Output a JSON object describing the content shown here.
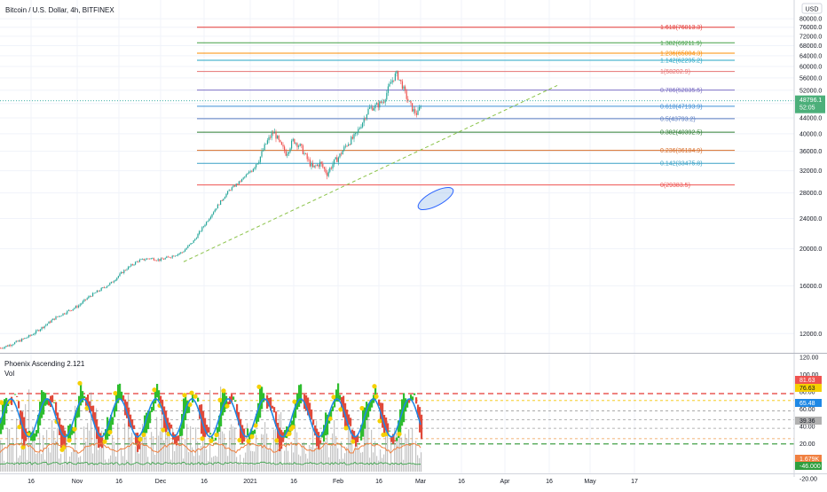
{
  "header": {
    "title": "Bitcoin / U.S. Dollar, 4h, BITFINEX",
    "currency_button": "USD",
    "colors": {
      "up": "#26a69a",
      "down": "#ef5350"
    }
  },
  "indicator": {
    "title": "Phoenix Ascending 2.121",
    "sub_title": "Vol"
  },
  "chart_data": [
    {
      "type": "candlestick",
      "y_scale": "log",
      "ylim": [
        10800,
        84000
      ],
      "y_ticks": [
        "80000.0",
        "76000.0",
        "72000.0",
        "68000.0",
        "64000.0",
        "60000.0",
        "56000.0",
        "52000.0",
        "48000.0",
        "44000.0",
        "40000.0",
        "36000.0",
        "32000.0",
        "28000.0",
        "24000.0",
        "20000.0",
        "16000.0",
        "12000.0"
      ],
      "x_ticks": [
        "16",
        "Nov",
        "16",
        "Dec",
        "16",
        "2021",
        "16",
        "Feb",
        "16",
        "Mar",
        "16",
        "Apr",
        "16",
        "May",
        "17"
      ],
      "series": [
        {
          "values": [
            [
              0,
              11000
            ],
            [
              10,
              11200
            ],
            [
              22,
              11500
            ],
            [
              35,
              11900
            ],
            [
              50,
              12600
            ],
            [
              62,
              13200
            ],
            [
              75,
              13700
            ],
            [
              88,
              14200
            ],
            [
              100,
              15000
            ],
            [
              112,
              15600
            ],
            [
              125,
              16300
            ],
            [
              140,
              17600
            ],
            [
              155,
              18600
            ],
            [
              168,
              18900
            ],
            [
              180,
              18700
            ],
            [
              192,
              19100
            ],
            [
              205,
              19600
            ],
            [
              218,
              21000
            ],
            [
              232,
              23500
            ],
            [
              245,
              26000
            ],
            [
              258,
              28500
            ],
            [
              270,
              30000
            ],
            [
              282,
              32000
            ],
            [
              292,
              34500
            ],
            [
              300,
              38000
            ],
            [
              308,
              40500
            ],
            [
              315,
              37500
            ],
            [
              322,
              35500
            ],
            [
              330,
              38500
            ],
            [
              338,
              37000
            ],
            [
              345,
              34500
            ],
            [
              352,
              32500
            ],
            [
              360,
              33500
            ],
            [
              368,
              31500
            ],
            [
              375,
              33500
            ],
            [
              382,
              35000
            ],
            [
              390,
              37500
            ],
            [
              400,
              39500
            ],
            [
              408,
              43000
            ],
            [
              415,
              46500
            ],
            [
              425,
              47500
            ],
            [
              432,
              49000
            ],
            [
              440,
              54500
            ],
            [
              446,
              57500
            ],
            [
              452,
              54000
            ],
            [
              458,
              49500
            ],
            [
              465,
              46000
            ],
            [
              470,
              45000
            ],
            [
              475,
              48796
            ]
          ]
        }
      ],
      "price_label": {
        "value": "48796.1",
        "countdown": "52:05"
      },
      "fib_levels": [
        {
          "ratio": "1.618",
          "value": "76013.3",
          "color": "#e53935"
        },
        {
          "ratio": "1.382",
          "value": "69211.9",
          "color": "#43a047"
        },
        {
          "ratio": "1.236",
          "value": "65004.3",
          "color": "#fb8c00"
        },
        {
          "ratio": "1.142",
          "value": "62295.2",
          "color": "#26a6c6"
        },
        {
          "ratio": "1",
          "value": "58202.9",
          "color": "#e57373"
        },
        {
          "ratio": "0.786",
          "value": "52035.5",
          "color": "#7e72c5"
        },
        {
          "ratio": "0.618",
          "value": "47193.9",
          "color": "#3f8fd6"
        },
        {
          "ratio": "0.5",
          "value": "43793.2",
          "color": "#5b7ec2"
        },
        {
          "ratio": "0.382",
          "value": "40392.5",
          "color": "#2e7d32"
        },
        {
          "ratio": "0.236",
          "value": "36184.9",
          "color": "#d86e2a"
        },
        {
          "ratio": "0.142",
          "value": "33475.8",
          "color": "#3aa1c6"
        },
        {
          "ratio": "0",
          "value": "29383.5",
          "color": "#ef5350"
        }
      ]
    },
    {
      "type": "line",
      "ylim": [
        -12,
        122
      ],
      "y_ticks": [
        "120.00",
        "100.00",
        "80.00",
        "60.00",
        "40.00",
        "20.00",
        "0.00",
        "-20.00"
      ],
      "level_labels": [
        {
          "value": "81.63",
          "color": "#ef5350"
        },
        {
          "value": "76.63",
          "color": "#f5d000"
        },
        {
          "value": "65.48",
          "color": "#1e88e5"
        },
        {
          "value": "39.36",
          "color": "#b0b0b0"
        },
        {
          "value": "1.679K",
          "color": "#f08040"
        },
        {
          "value": "-46.000",
          "color": "#2e9e3e"
        }
      ],
      "dashed_levels": [
        78,
        70,
        58,
        48,
        38,
        26,
        20
      ]
    }
  ]
}
